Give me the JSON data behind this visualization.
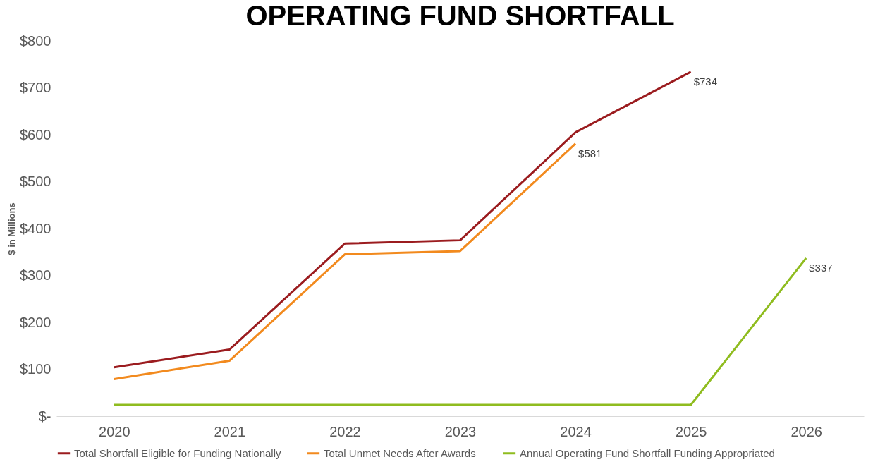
{
  "chart_data": {
    "type": "line",
    "title": "OPERATING FUND SHORTFALL",
    "ylabel": "$ in Millions",
    "categories": [
      "2020",
      "2021",
      "2022",
      "2023",
      "2024",
      "2025",
      "2026"
    ],
    "series": [
      {
        "name": "Total Shortfall Eligible for Funding Nationally",
        "color": "#9b1c1f",
        "values": [
          104,
          142,
          368,
          375,
          605,
          734,
          null
        ],
        "value_labels": [
          null,
          null,
          null,
          null,
          null,
          "$734",
          null
        ]
      },
      {
        "name": "Total Unmet Needs After Awards",
        "color": "#f28a1e",
        "values": [
          79,
          118,
          345,
          352,
          581,
          null,
          null
        ],
        "value_labels": [
          null,
          null,
          null,
          null,
          "$581",
          null,
          null
        ]
      },
      {
        "name": "Annual Operating Fund Shortfall Funding Appropriated",
        "color": "#8fbc1f",
        "values": [
          24,
          24,
          24,
          24,
          24,
          24,
          337
        ],
        "value_labels": [
          null,
          null,
          null,
          null,
          null,
          null,
          "$337"
        ]
      }
    ],
    "ylim": [
      0,
      800
    ],
    "yticks": [
      {
        "value": 0,
        "label": "$-"
      },
      {
        "value": 100,
        "label": "$100"
      },
      {
        "value": 200,
        "label": "$200"
      },
      {
        "value": 300,
        "label": "$300"
      },
      {
        "value": 400,
        "label": "$400"
      },
      {
        "value": 500,
        "label": "$500"
      },
      {
        "value": 600,
        "label": "$600"
      },
      {
        "value": 700,
        "label": "$700"
      },
      {
        "value": 800,
        "label": "$800"
      }
    ],
    "grid": false,
    "legend": "bottom",
    "marker": "none",
    "line_style": "solid"
  }
}
